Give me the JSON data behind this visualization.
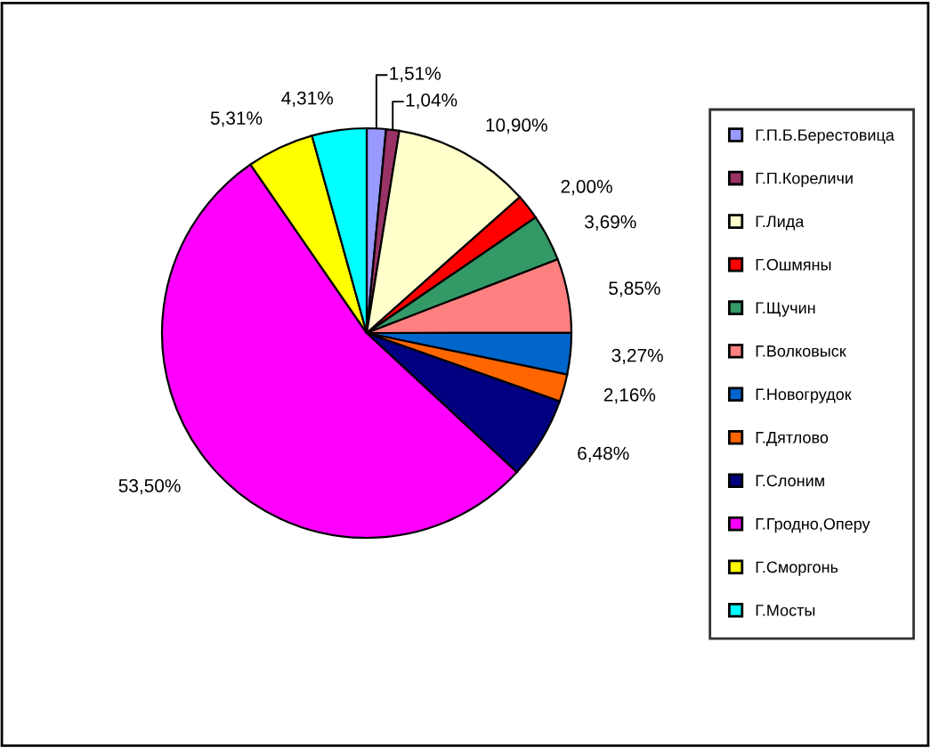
{
  "chart_data": {
    "type": "pie",
    "categories": [
      "Г.П.Б.Берестовица",
      "Г.П.Кореличи",
      "Г.Лида",
      "Г.Ошмяны",
      "Г.Щучин",
      "Г.Волковыск",
      "Г.Новогрудок",
      "Г.Дятлово",
      "Г.Слоним",
      "Г.Гродно,Оперу",
      "Г.Сморгонь",
      "Г.Мосты"
    ],
    "values": [
      1.51,
      1.04,
      10.9,
      2.0,
      3.69,
      5.85,
      3.27,
      2.16,
      6.48,
      53.5,
      5.31,
      4.31
    ],
    "colors": [
      "#9999ff",
      "#993366",
      "#ffffcc",
      "#ff0000",
      "#339966",
      "#ff8080",
      "#0066cc",
      "#ff6600",
      "#000080",
      "#ff00ff",
      "#ffff00",
      "#00ffff"
    ],
    "value_labels": [
      "1,51%",
      "1,04%",
      "10,90%",
      "2,00%",
      "3,69%",
      "5,85%",
      "3,27%",
      "2,16%",
      "6,48%",
      "53,50%",
      "5,31%",
      "4,31%"
    ],
    "legend": "right"
  }
}
